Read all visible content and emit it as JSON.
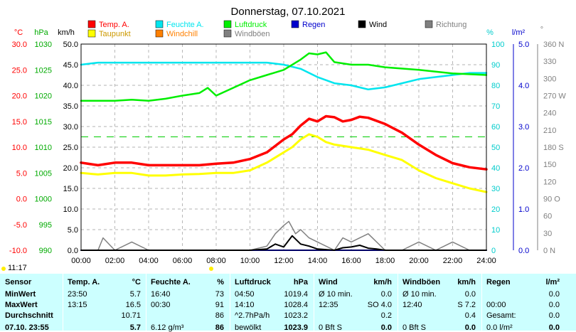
{
  "title": "Donnerstag, 07.10.2021",
  "time_now": "11:17",
  "legend": [
    {
      "label": "Temp. A.",
      "color": "#ff0000"
    },
    {
      "label": "Feuchte A.",
      "color": "#00e5ee"
    },
    {
      "label": "Luftdruck",
      "color": "#00ee00"
    },
    {
      "label": "Regen",
      "color": "#0000cc"
    },
    {
      "label": "Wind",
      "color": "#000000"
    },
    {
      "label": "Richtung",
      "color": "#808080"
    },
    {
      "label": "Taupunkt",
      "color": "#ffff00"
    },
    {
      "label": "Windchill",
      "color": "#ff8000"
    },
    {
      "label": "Windböen",
      "color": "#808080"
    }
  ],
  "axes": {
    "temp_unit": "°C",
    "press_unit": "hPa",
    "wind_unit": "km/h",
    "hum_unit": "%",
    "rain_unit": "l/m²",
    "dir_unit": "°",
    "temp_ticks": [
      "30.0",
      "25.0",
      "20.0",
      "15.0",
      "10.0",
      "5.0",
      "0.0",
      "-5.0",
      "-10.0"
    ],
    "press_ticks": [
      "1030",
      "1025",
      "1020",
      "1015",
      "1010",
      "1005",
      "1000",
      "995",
      "990"
    ],
    "wind_ticks": [
      "50.0",
      "45.0",
      "40.0",
      "35.0",
      "30.0",
      "25.0",
      "20.0",
      "15.0",
      "10.0",
      "5.0",
      "0.0"
    ],
    "hum_ticks": [
      "100",
      "90",
      "80",
      "70",
      "60",
      "50",
      "40",
      "30",
      "20",
      "10",
      "0"
    ],
    "rain_ticks": [
      "5.0",
      "4.0",
      "3.0",
      "2.0",
      "1.0",
      "0.0"
    ],
    "dir_ticks": [
      "360 N",
      "330",
      "300",
      "270 W",
      "240",
      "210",
      "180 S",
      "150",
      "120",
      "90 O",
      "60",
      "30",
      "0 N"
    ],
    "time_ticks": [
      "00:00",
      "02:00",
      "04:00",
      "06:00",
      "08:00",
      "10:00",
      "12:00",
      "14:00",
      "16:00",
      "18:00",
      "20:00",
      "22:00",
      "24:00"
    ]
  },
  "chart_data": {
    "type": "line",
    "x_unit": "hour of day",
    "series": [
      {
        "name": "Temp. A.",
        "axis": "°C",
        "color": "#ff0000",
        "x": [
          0,
          1,
          2,
          3,
          4,
          5,
          6,
          7,
          8,
          9,
          10,
          11,
          12,
          12.5,
          13,
          13.5,
          14,
          14.5,
          15,
          15.5,
          16,
          16.5,
          17,
          18,
          19,
          20,
          21,
          22,
          23,
          24
        ],
        "values": [
          7.0,
          6.5,
          7.0,
          7.0,
          6.5,
          6.5,
          6.5,
          6.5,
          6.8,
          7.0,
          7.7,
          9.0,
          11.5,
          12.5,
          14.2,
          15.5,
          15.0,
          16.0,
          15.8,
          15.0,
          15.3,
          15.9,
          15.7,
          14.5,
          12.8,
          10.5,
          8.5,
          6.9,
          6.1,
          5.7
        ]
      },
      {
        "name": "Taupunkt",
        "axis": "°C",
        "color": "#ffff00",
        "x": [
          0,
          1,
          2,
          3,
          4,
          5,
          6,
          7,
          8,
          9,
          10,
          11,
          12,
          12.5,
          13,
          13.5,
          14,
          14.5,
          15,
          16,
          17,
          18,
          19,
          20,
          21,
          22,
          23,
          24
        ],
        "values": [
          5.0,
          4.7,
          5.0,
          5.0,
          4.5,
          4.5,
          4.7,
          4.8,
          5.0,
          5.0,
          5.5,
          7.0,
          9.0,
          10.0,
          11.5,
          12.5,
          12.0,
          11.0,
          10.5,
          10.0,
          9.5,
          8.5,
          7.5,
          5.5,
          4.0,
          3.0,
          2.0,
          1.3
        ]
      },
      {
        "name": "Feuchte A.",
        "axis": "%",
        "color": "#00e5ee",
        "x": [
          0,
          1,
          2,
          3,
          4,
          5,
          6,
          7,
          8,
          9,
          10,
          11,
          12,
          13,
          14,
          15,
          16,
          17,
          18,
          19,
          20,
          21,
          22,
          23,
          24
        ],
        "values": [
          90,
          91,
          91,
          91,
          91,
          91,
          91,
          91,
          91,
          91,
          91,
          91,
          90,
          88,
          84,
          81,
          80,
          78,
          79,
          81,
          83,
          84,
          85,
          86,
          86
        ]
      },
      {
        "name": "Luftdruck",
        "axis": "hPa",
        "color": "#00ee00",
        "x": [
          0,
          1,
          2,
          3,
          4,
          5,
          6,
          7,
          7.5,
          8,
          9,
          10,
          11,
          12,
          13,
          13.5,
          14,
          14.5,
          15,
          16,
          17,
          18,
          20,
          22,
          24
        ],
        "values": [
          1019.0,
          1019.0,
          1019.0,
          1019.2,
          1019.0,
          1019.4,
          1020.0,
          1020.5,
          1021.5,
          1020.0,
          1021.5,
          1023.0,
          1024.0,
          1025.0,
          1027.0,
          1028.2,
          1028.0,
          1028.4,
          1026.5,
          1026.0,
          1026.0,
          1025.5,
          1025.0,
          1024.3,
          1024.0
        ]
      },
      {
        "name": "Windböen",
        "axis": "km/h",
        "color": "#808080",
        "x": [
          0,
          1,
          1.3,
          2,
          3,
          4,
          5,
          6,
          7,
          8,
          9,
          10,
          11,
          11.5,
          12,
          12.3,
          12.7,
          13,
          13.5,
          14,
          15,
          15.5,
          16,
          16.5,
          17,
          18,
          19,
          20,
          21,
          22,
          23,
          24
        ],
        "values": [
          0,
          0,
          3,
          0,
          2,
          0,
          0,
          0,
          0,
          0,
          0,
          0,
          1,
          4,
          6,
          7,
          4,
          5,
          3,
          2,
          0,
          3,
          2,
          3,
          4,
          0,
          0,
          2,
          0,
          2,
          0,
          0
        ]
      },
      {
        "name": "Wind",
        "axis": "km/h",
        "color": "#000000",
        "x": [
          0,
          10,
          11,
          11.5,
          12,
          12.5,
          13,
          13.5,
          14,
          15,
          15.5,
          16,
          16.5,
          17,
          17.5,
          18,
          24
        ],
        "values": [
          0,
          0,
          0.3,
          1.5,
          0.8,
          3.5,
          1.5,
          1.0,
          0.3,
          0,
          0.6,
          0.8,
          1.2,
          0.5,
          0.3,
          0,
          0
        ]
      },
      {
        "name": "Regen",
        "axis": "l/m²",
        "color": "#0000cc",
        "x": [
          0,
          24
        ],
        "values": [
          0,
          0
        ]
      }
    ],
    "x_range": [
      0,
      24
    ],
    "ylim_temp": [
      -10,
      30
    ],
    "ylim_press": [
      990,
      1030
    ],
    "ylim_wind": [
      0,
      50
    ],
    "ylim_hum": [
      0,
      100
    ],
    "ylim_rain": [
      0,
      5
    ],
    "ylim_dir": [
      0,
      360
    ],
    "reference_line_temp": 12.0,
    "grid": true
  },
  "stats": {
    "sensor": {
      "header": "Sensor",
      "rows": [
        "MinWert",
        "MaxWert",
        "Durchschnitt",
        "07.10. 23:55"
      ]
    },
    "temp": {
      "header": "Temp. A.",
      "unit": "°C",
      "rows": [
        [
          "23:50",
          "5.7"
        ],
        [
          "13:15",
          "16.5"
        ],
        [
          "",
          "10.71"
        ],
        [
          "",
          "5.7"
        ]
      ]
    },
    "hum": {
      "header": "Feuchte A.",
      "unit": "%",
      "rows": [
        [
          "16:40",
          "73"
        ],
        [
          "00:30",
          "91"
        ],
        [
          "",
          "86"
        ],
        [
          "6.12 g/m³",
          "86"
        ]
      ]
    },
    "press": {
      "header": "Luftdruck",
      "unit": "hPa",
      "rows": [
        [
          "04:50",
          "1019.4"
        ],
        [
          "14:10",
          "1028.4"
        ],
        [
          "^2.7hPa/h",
          "1023.2"
        ],
        [
          "bewölkt",
          "1023.9"
        ]
      ]
    },
    "wind": {
      "header": "Wind",
      "unit": "km/h",
      "rows": [
        [
          "Ø 10 min.",
          "0.0"
        ],
        [
          "12:35",
          "SO 4.0"
        ],
        [
          "",
          "0.2"
        ],
        [
          "0 Bft S",
          "0.0"
        ]
      ]
    },
    "gust": {
      "header": "Windböen",
      "unit": "km/h",
      "rows": [
        [
          "Ø 10 min.",
          "0.0"
        ],
        [
          "12:40",
          "S 7.2"
        ],
        [
          "",
          "0.4"
        ],
        [
          "0 Bft S",
          "0.0"
        ]
      ]
    },
    "rain": {
      "header": "Regen",
      "unit": "l/m²",
      "rows": [
        [
          "",
          "0.0"
        ],
        [
          "00:00",
          "0.0"
        ],
        [
          "Gesamt:",
          "0.0"
        ],
        [
          "0.0 l/m²",
          "0.0"
        ]
      ]
    }
  }
}
